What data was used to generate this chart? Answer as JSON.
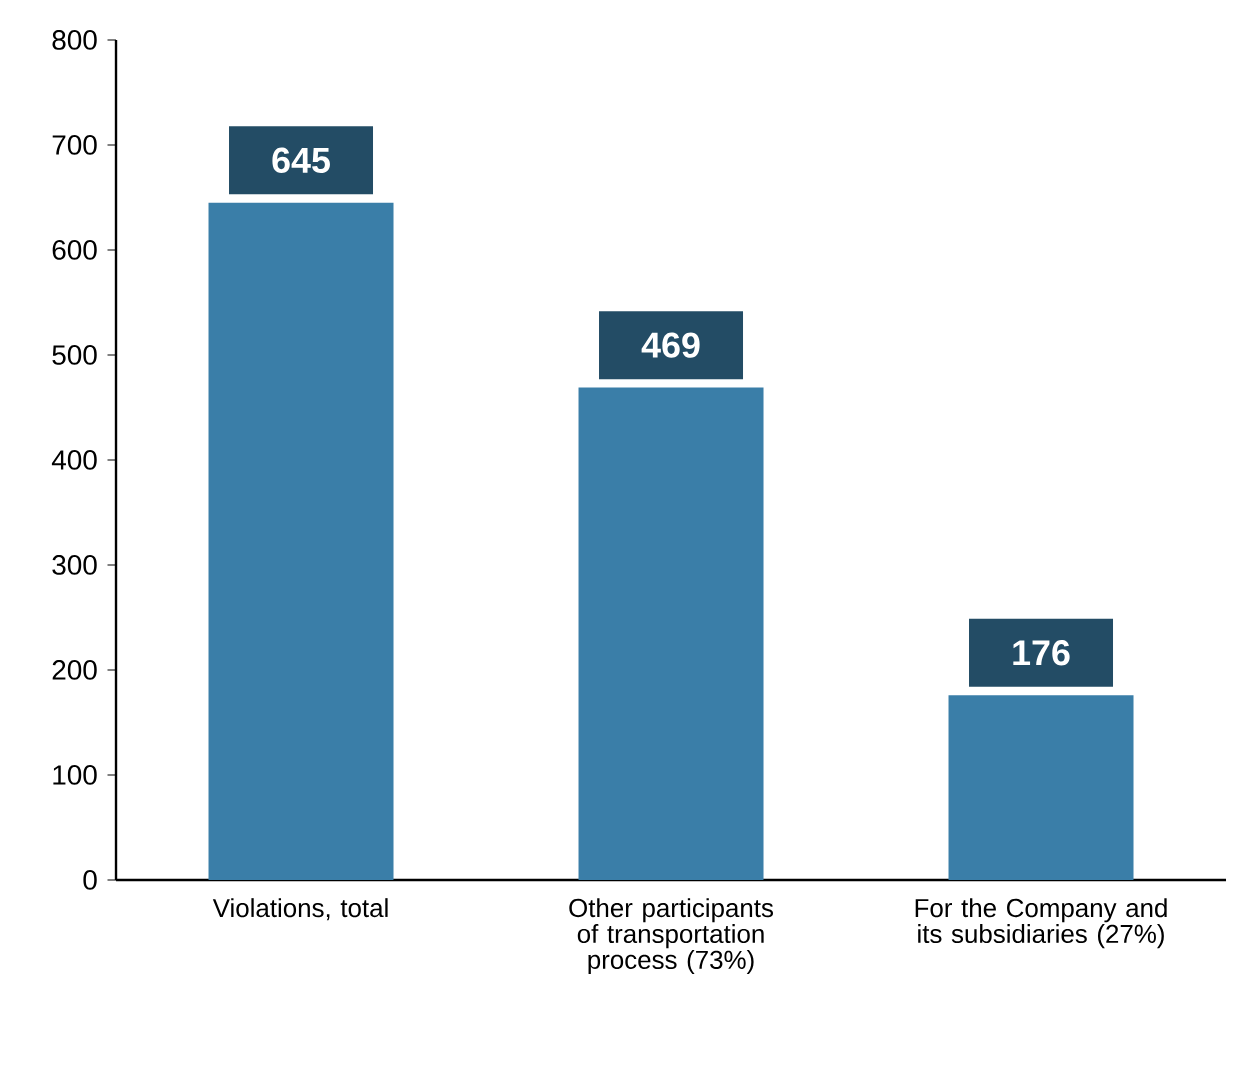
{
  "chart_data": {
    "type": "bar",
    "categories": [
      "Violations, total",
      "Other participants of transportation process (73%)",
      "For the Company and its subsidiaries (27%)"
    ],
    "values": [
      645,
      469,
      176
    ],
    "color": "#3a7ea8",
    "ylim": [
      0,
      800
    ],
    "yticks": [
      0,
      100,
      200,
      300,
      400,
      500,
      600,
      700,
      800
    ],
    "data_labels": true
  }
}
